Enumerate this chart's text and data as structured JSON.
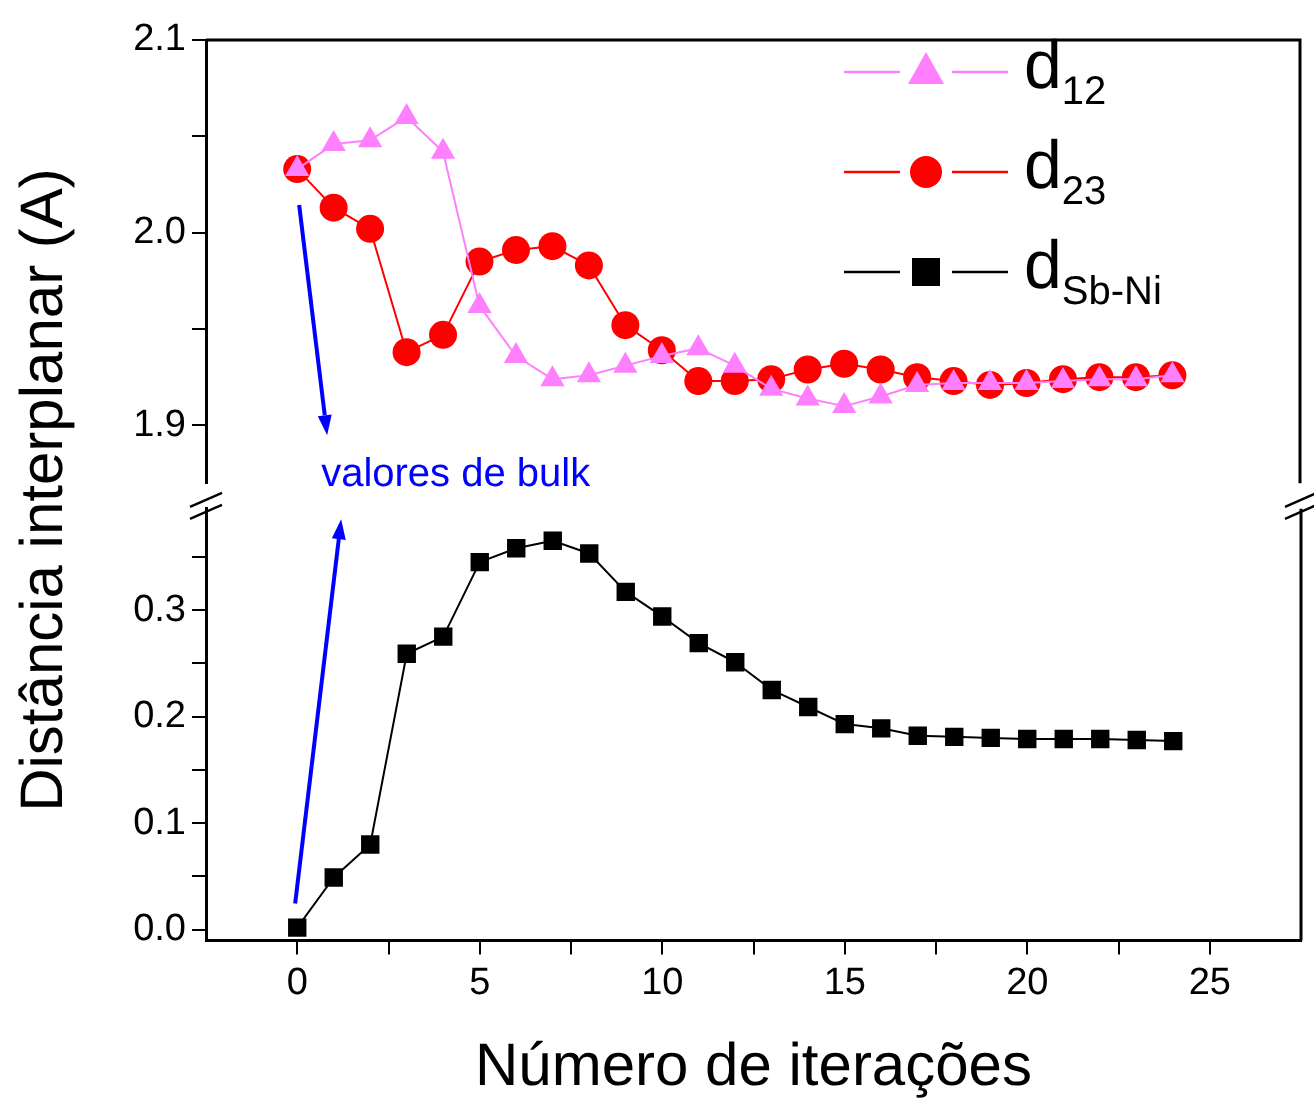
{
  "chart_data": [
    {
      "type": "line",
      "ylabel": "Distância interplanar (A)",
      "x": [
        0,
        1,
        2,
        3,
        4,
        5,
        6,
        7,
        8,
        9,
        10,
        11,
        12,
        13,
        14,
        15,
        16,
        17,
        18,
        19,
        20,
        21,
        22,
        23,
        24
      ],
      "series": [
        {
          "name": "d$_{12}$",
          "color": "#ff80ff",
          "marker": "triangle",
          "values": [
            2.033,
            2.046,
            2.048,
            2.06,
            2.042,
            1.962,
            1.936,
            1.924,
            1.926,
            1.931,
            1.936,
            1.94,
            1.931,
            1.919,
            1.914,
            1.91,
            1.915,
            1.921,
            1.922,
            1.922,
            1.922,
            1.923,
            1.924,
            1.924,
            1.926
          ]
        },
        {
          "name": "d$_{23}$",
          "color": "#ff0000",
          "marker": "circle",
          "values": [
            2.033,
            2.013,
            2.002,
            1.938,
            1.947,
            1.985,
            1.991,
            1.993,
            1.983,
            1.952,
            1.939,
            1.923,
            1.923,
            1.924,
            1.929,
            1.932,
            1.929,
            1.925,
            1.923,
            1.921,
            1.922,
            1.924,
            1.925,
            1.925,
            1.926
          ]
        }
      ],
      "xlim": [
        -2.5,
        27.5
      ],
      "ylim": [
        1.87,
        2.1
      ],
      "yticks": [
        {
          "value": 1.9,
          "label": "1.9"
        },
        {
          "value": 1.95,
          "label": null
        },
        {
          "value": 2,
          "label": "2.0"
        },
        {
          "value": 2.05,
          "label": null
        },
        {
          "value": 2.1,
          "label": "2.1"
        }
      ],
      "tick_labels": "y",
      "annotations": [
        "valores de bulk"
      ],
      "legend": "top right",
      "grid": false,
      "line_style": "solid"
    },
    {
      "type": "line",
      "xlabel": "Número de iterações",
      "x": [
        0,
        1,
        2,
        3,
        4,
        5,
        6,
        7,
        8,
        9,
        10,
        11,
        12,
        13,
        14,
        15,
        16,
        17,
        18,
        19,
        20,
        21,
        22,
        23,
        24
      ],
      "series": [
        {
          "name": "d$_{Sb-Ni}$",
          "color": "#000000",
          "marker": "square",
          "values": [
            0.002,
            0.049,
            0.08,
            0.259,
            0.275,
            0.345,
            0.358,
            0.365,
            0.353,
            0.317,
            0.294,
            0.269,
            0.251,
            0.225,
            0.209,
            0.193,
            0.189,
            0.182,
            0.181,
            0.18,
            0.179,
            0.179,
            0.179,
            0.178,
            0.177
          ]
        }
      ],
      "xlim": [
        -2.5,
        27.5
      ],
      "xticks": [
        0,
        {
          "value": 2.5,
          "label": null
        },
        5,
        {
          "value": 7.5,
          "label": null
        },
        10,
        {
          "value": 12.5,
          "label": null
        },
        15,
        {
          "value": 17.5,
          "label": null
        },
        20,
        {
          "value": 22.5,
          "label": null
        },
        25
      ],
      "ylim": [
        -0.01,
        0.395
      ],
      "yticks": [
        {
          "value": 0,
          "label": "0.0"
        },
        {
          "value": 0.05,
          "label": null
        },
        0.1,
        {
          "value": 0.15,
          "label": null
        },
        0.2,
        {
          "value": 0.25,
          "label": null
        },
        0.3,
        {
          "value": 0.35,
          "label": null
        }
      ],
      "legend": "top right",
      "grid": false,
      "line_style": "solid"
    }
  ]
}
